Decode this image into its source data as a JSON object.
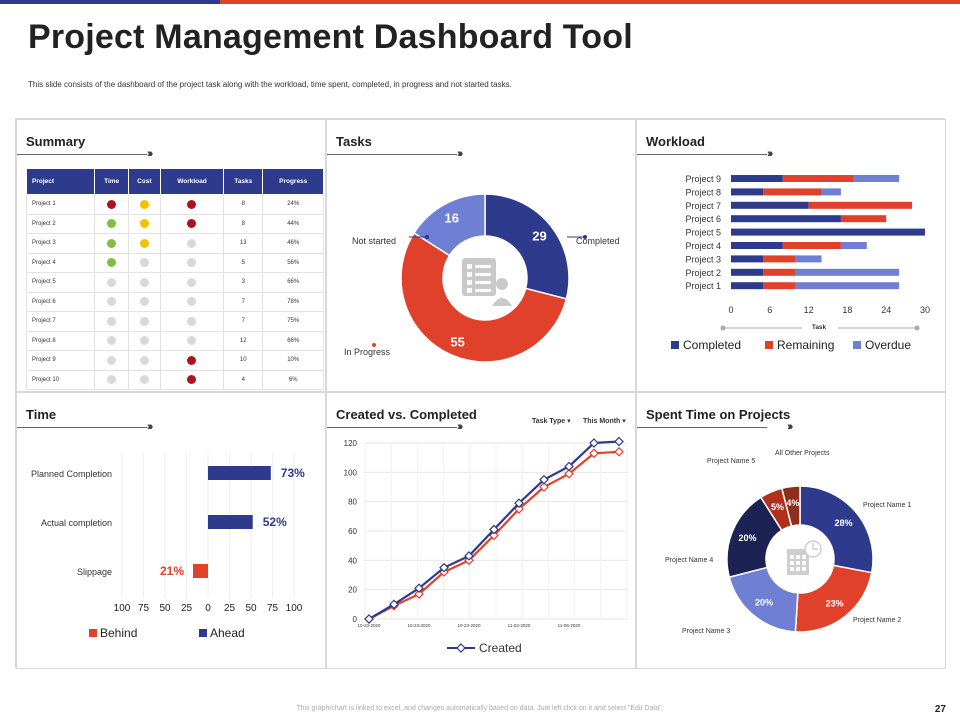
{
  "header": {
    "title": "Project Management Dashboard Tool",
    "subtitle": "This slide consists of the dashboard of the project task along with the workload, time spent, completed, in progress and not started tasks."
  },
  "colors": {
    "navy": "#2e3a8c",
    "red": "#e0412b",
    "periwinkle": "#6f7fd4",
    "dark_red": "#8b2e1e",
    "dark_navy": "#1c2354",
    "green": "#7fbf3f",
    "yellow": "#f2c200",
    "gray": "#d9d9d9",
    "status_red": "#b0121b"
  },
  "summary": {
    "title": "Summary",
    "columns": [
      "Project",
      "Time",
      "Cost",
      "Workload",
      "Tasks",
      "Progress"
    ],
    "rows": [
      {
        "project": "Project 1",
        "time": "red",
        "cost": "yellow",
        "workload": "red",
        "tasks": "8",
        "progress": "24%"
      },
      {
        "project": "Project 2",
        "time": "green",
        "cost": "yellow",
        "workload": "red",
        "tasks": "8",
        "progress": "44%"
      },
      {
        "project": "Project 3",
        "time": "green",
        "cost": "yellow",
        "workload": "gray",
        "tasks": "13",
        "progress": "46%"
      },
      {
        "project": "Project 4",
        "time": "green",
        "cost": "gray",
        "workload": "gray",
        "tasks": "5",
        "progress": "56%"
      },
      {
        "project": "Project 5",
        "time": "gray",
        "cost": "gray",
        "workload": "gray",
        "tasks": "3",
        "progress": "66%"
      },
      {
        "project": "Project 6",
        "time": "gray",
        "cost": "gray",
        "workload": "gray",
        "tasks": "7",
        "progress": "78%"
      },
      {
        "project": "Project 7",
        "time": "gray",
        "cost": "gray",
        "workload": "gray",
        "tasks": "7",
        "progress": "75%"
      },
      {
        "project": "Project 8",
        "time": "gray",
        "cost": "gray",
        "workload": "gray",
        "tasks": "12",
        "progress": "66%"
      },
      {
        "project": "Project 9",
        "time": "gray",
        "cost": "gray",
        "workload": "red",
        "tasks": "10",
        "progress": "10%"
      },
      {
        "project": "Project 10",
        "time": "gray",
        "cost": "gray",
        "workload": "red",
        "tasks": "4",
        "progress": "6%"
      }
    ]
  },
  "tasks": {
    "title": "Tasks",
    "labels": {
      "not_started": "Not started",
      "completed": "Completed",
      "in_progress": "In Progress"
    }
  },
  "workload": {
    "title": "Workload"
  },
  "time_panel": {
    "title": "Time"
  },
  "created_panel": {
    "title": "Created vs. Completed",
    "task_type": "Task Type",
    "this_month": "This Month"
  },
  "spent_panel": {
    "title": "Spent Time on Projects",
    "labels": {
      "p1": "Project Name 1",
      "p2": "Project Name 2",
      "p3": "Project Name 3",
      "p4": "Project Name 4",
      "p5": "Project Name 5",
      "other": "All Other Projects"
    }
  },
  "chart_data": [
    {
      "type": "pie",
      "categories": [
        "Completed",
        "In Progress",
        "Not started"
      ],
      "values": [
        29,
        55,
        16
      ],
      "colors": [
        "#2e3a8c",
        "#e0412b",
        "#6f7fd4"
      ]
    },
    {
      "type": "bar",
      "orientation": "horizontal",
      "stacked": true,
      "categories": [
        "Project 1",
        "Project 2",
        "Project 3",
        "Project 4",
        "Project 5",
        "Project 6",
        "Project 7",
        "Project 8",
        "Project 9"
      ],
      "series": [
        {
          "name": "Completed",
          "color": "#2e3a8c",
          "values": [
            5,
            5,
            5,
            8,
            30,
            17,
            12,
            5,
            8
          ]
        },
        {
          "name": "Remaining",
          "color": "#e0412b",
          "values": [
            5,
            5,
            5,
            9,
            0,
            7,
            16,
            9,
            11
          ]
        },
        {
          "name": "Overdue",
          "color": "#6f7fd4",
          "values": [
            16,
            16,
            4,
            4,
            0,
            0,
            0,
            3,
            7
          ]
        }
      ],
      "xlabel": "Task",
      "xticks": [
        "0",
        "6",
        "12",
        "18",
        "24",
        "30"
      ],
      "xlim": [
        0,
        30
      ]
    },
    {
      "type": "bar",
      "orientation": "horizontal",
      "categories": [
        "Planned Completion",
        "Actual completion",
        "Slippage"
      ],
      "series": [
        {
          "name": "Behind",
          "color": "#e0412b",
          "values": [
            0,
            0,
            21
          ]
        },
        {
          "name": "Ahead",
          "color": "#2e3a8c",
          "values": [
            73,
            52,
            0
          ]
        }
      ],
      "data_labels": [
        "73%",
        "52%",
        "21%"
      ],
      "xticks": [
        "100",
        "75",
        "50",
        "25",
        "0",
        "25",
        "50",
        "75",
        "100"
      ],
      "xlim": [
        -100,
        100
      ]
    },
    {
      "type": "line",
      "x": [
        "10-23-2020",
        "",
        "10-23-2020",
        "",
        "10-23-2020",
        "",
        "11-02-2020",
        "",
        "11-06-2020",
        "",
        ""
      ],
      "series": [
        {
          "name": "Created",
          "color": "#2e3a8c",
          "values": [
            0,
            10,
            21,
            35,
            43,
            61,
            79,
            95,
            104,
            120,
            121
          ]
        },
        {
          "name": "Completed",
          "color": "#e0412b",
          "values": [
            0,
            9,
            17,
            32,
            40,
            57,
            75,
            90,
            99,
            113,
            114
          ]
        }
      ],
      "yticks": [
        "0",
        "20",
        "40",
        "60",
        "80",
        "100",
        "120"
      ],
      "ylim": [
        0,
        120
      ]
    },
    {
      "type": "pie",
      "categories": [
        "Project Name 1",
        "Project Name 2",
        "Project Name 3",
        "Project Name 4",
        "Project Name 5",
        "All Other Projects"
      ],
      "values": [
        28,
        23,
        20,
        20,
        5,
        4
      ],
      "labels": [
        "28%",
        "23%",
        "20%",
        "20%",
        "5%",
        "4%"
      ],
      "colors": [
        "#2e3a8c",
        "#e0412b",
        "#6f7fd4",
        "#1c2354",
        "#b0301c",
        "#8b2e1e"
      ]
    }
  ],
  "footer": {
    "note": "This graph/chart is linked to excel, and changes automatically based on data. Just left click on it and select \"Edit Data\".",
    "page": "27"
  }
}
